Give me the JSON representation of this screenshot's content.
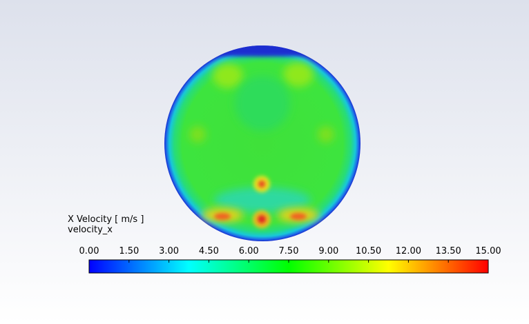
{
  "chart_data": {
    "type": "contour",
    "title": "X Velocity [ m/s ]",
    "subtitle": "velocity_x",
    "colorbar": {
      "lim": [
        0,
        15
      ],
      "ticks": [
        {
          "value": 0,
          "label": "0.00"
        },
        {
          "value": 1.5,
          "label": "1.50"
        },
        {
          "value": 3,
          "label": "3.00"
        },
        {
          "value": 4.5,
          "label": "4.50"
        },
        {
          "value": 6,
          "label": "6.00"
        },
        {
          "value": 7.5,
          "label": "7.50"
        },
        {
          "value": 9,
          "label": "9.00"
        },
        {
          "value": 10.5,
          "label": "10.50"
        },
        {
          "value": 12,
          "label": "12.00"
        },
        {
          "value": 13.5,
          "label": "13.50"
        },
        {
          "value": 15,
          "label": "15.00"
        }
      ]
    }
  }
}
